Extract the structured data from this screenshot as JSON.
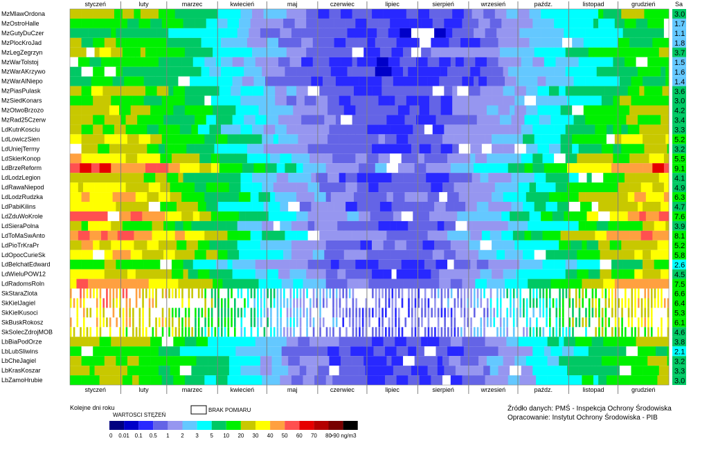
{
  "chart_data": {
    "type": "heatmap",
    "x_axis_label": "Kolejne dni roku",
    "months": [
      "styczeń",
      "luty",
      "marzec",
      "kwiecień",
      "maj",
      "czerwiec",
      "lipiec",
      "sierpień",
      "wrzesień",
      "paźdz.",
      "listopad",
      "grudzień"
    ],
    "stat_header": "Sa",
    "stations": [
      {
        "name": "MzMlawOrdona",
        "sa": "3.0"
      },
      {
        "name": "MzOstroHalle",
        "sa": "1.7"
      },
      {
        "name": "MzGutyDuCzer",
        "sa": "1.1"
      },
      {
        "name": "MzPlocKroJad",
        "sa": "1.8"
      },
      {
        "name": "MzLegZegrzyn",
        "sa": "3.7"
      },
      {
        "name": "MzWarTolstoj",
        "sa": "1.5"
      },
      {
        "name": "MzWarAKrzywo",
        "sa": "1.6"
      },
      {
        "name": "MzWarAlNiepo",
        "sa": "1.4"
      },
      {
        "name": "MzPiasPulask",
        "sa": "3.6"
      },
      {
        "name": "MzSiedKonars",
        "sa": "3.0"
      },
      {
        "name": "MzOtwoBrzozo",
        "sa": "4.2"
      },
      {
        "name": "MzRad25Czerw",
        "sa": "3.4"
      },
      {
        "name": "LdKutnKosciu",
        "sa": "3.3"
      },
      {
        "name": "LdLowiczSien",
        "sa": "5.2"
      },
      {
        "name": "LdUniejTermy",
        "sa": "3.2"
      },
      {
        "name": "LdSkierKonop",
        "sa": "5.5"
      },
      {
        "name": "LdBrzeReform",
        "sa": "9.1"
      },
      {
        "name": "LdLodzLegion",
        "sa": "4.1"
      },
      {
        "name": "LdRawaNiepod",
        "sa": "4.9"
      },
      {
        "name": "LdLodzRudzka",
        "sa": "6.3"
      },
      {
        "name": "LdPabiKilins",
        "sa": "4.7"
      },
      {
        "name": "LdZduWoKrole",
        "sa": "7.6"
      },
      {
        "name": "LdSieraPolna",
        "sa": "3.9"
      },
      {
        "name": "LdToMaSwAnto",
        "sa": "8.1"
      },
      {
        "name": "LdPioTrKraPr",
        "sa": "5.2"
      },
      {
        "name": "LdOpocCurieSk",
        "sa": "5.8"
      },
      {
        "name": "LdBelchatEdward",
        "sa": "2.6"
      },
      {
        "name": "LdWieluPOW12",
        "sa": "4.5"
      },
      {
        "name": "LdRadomsRoln",
        "sa": "7.5"
      },
      {
        "name": "SkStaraZlota",
        "sa": "6.6"
      },
      {
        "name": "SkKielJagiel",
        "sa": "6.4"
      },
      {
        "name": "SkKielKusoci",
        "sa": "5.3"
      },
      {
        "name": "SkBuskRokosz",
        "sa": "6.1"
      },
      {
        "name": "SkSolecZdrojMOB",
        "sa": "4.6"
      },
      {
        "name": "LbBiaPodOrze",
        "sa": "3.8"
      },
      {
        "name": "LbLubSliwins",
        "sa": "2.1"
      },
      {
        "name": "LbCheJagiel",
        "sa": "3.2"
      },
      {
        "name": "LbKrasKoszar",
        "sa": "3.3"
      },
      {
        "name": "LbZamoHrubie",
        "sa": "3.0"
      }
    ],
    "legend": {
      "title": "WARTOSCI STĘŻEŃ",
      "missing_label": "BRAK POMIARU",
      "tick_labels": [
        "0",
        "0.01",
        "0.1",
        "0.5",
        "1",
        "2",
        "3",
        "5",
        "10",
        "20",
        "30",
        "40",
        "50",
        "60",
        "70",
        "80",
        ">90 ng/m3"
      ],
      "colors": [
        "#000080",
        "#0000c8",
        "#2828ff",
        "#6464e6",
        "#9696f0",
        "#64c8ff",
        "#00ffff",
        "#00c864",
        "#00f000",
        "#c8c800",
        "#ffff00",
        "#ffa040",
        "#ff5050",
        "#e60000",
        "#b40000",
        "#780000",
        "#000000"
      ],
      "missing_color": "#ffffff"
    },
    "source_line1": "Źródło danych: PMŚ - Inspekcja Ochrony Środowiska",
    "source_line2": "Opracowanie: Instytut Ochrony Środowiska - PIB"
  }
}
